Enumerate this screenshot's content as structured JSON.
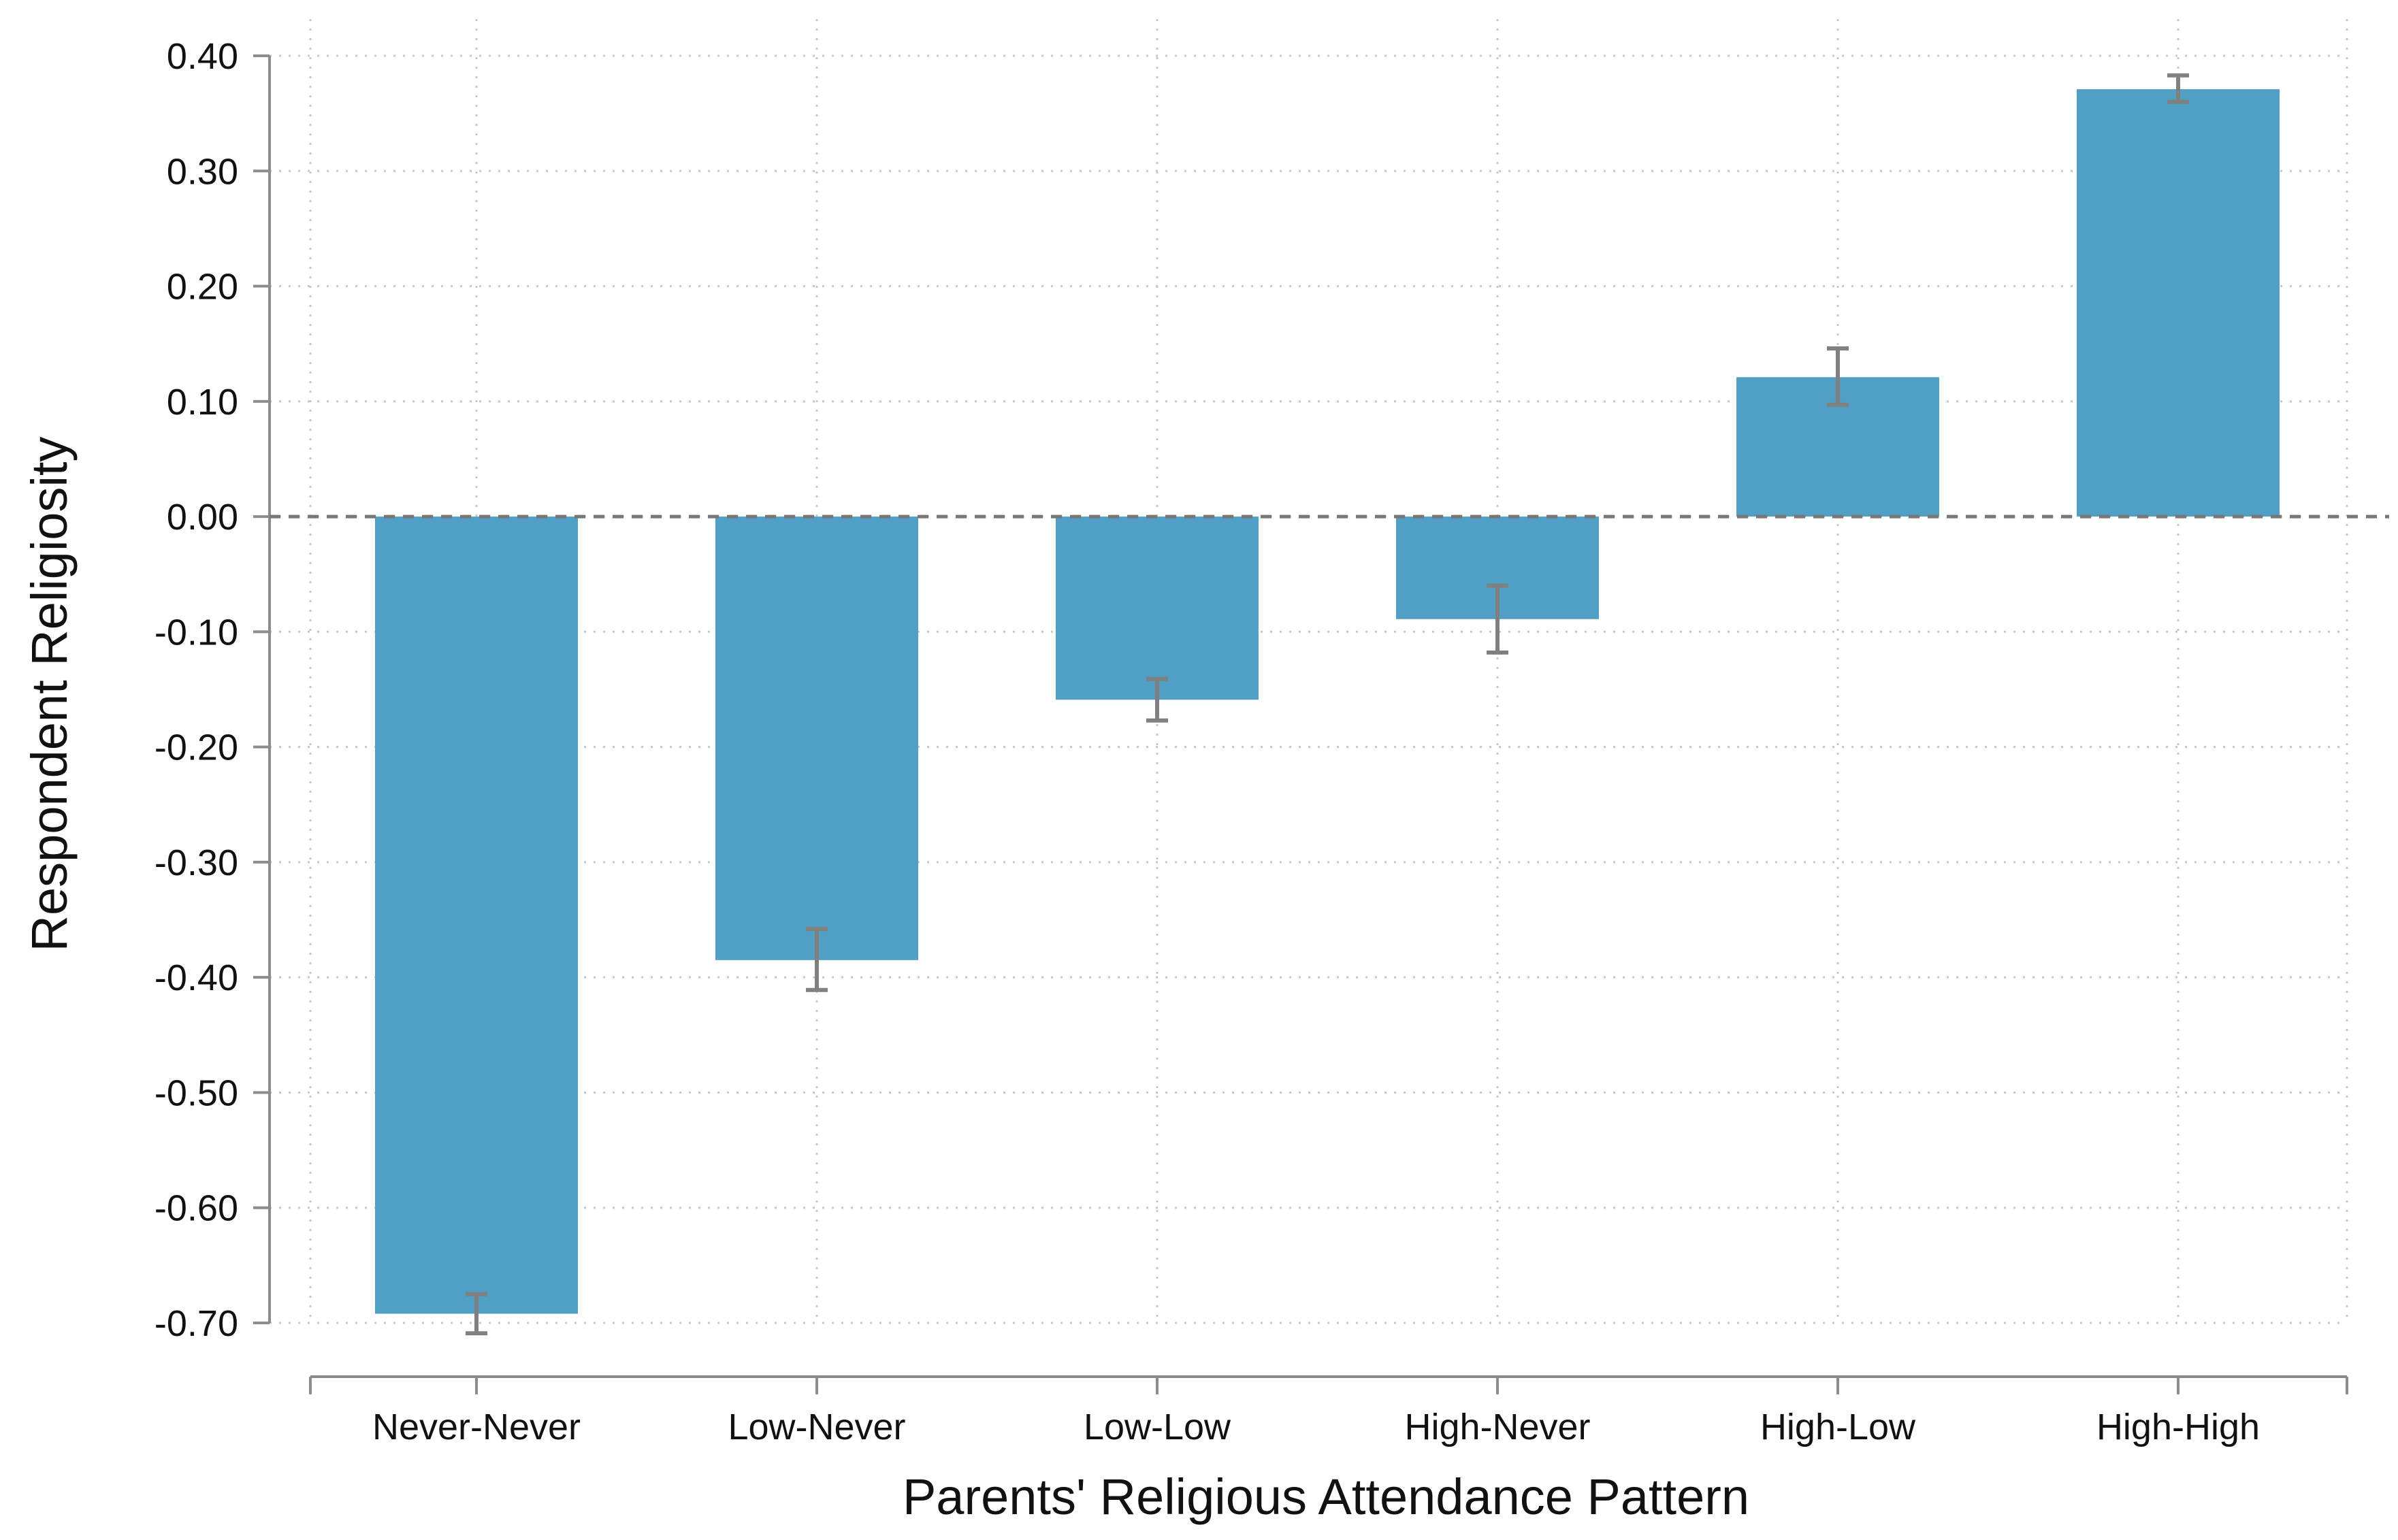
{
  "chart_data": {
    "type": "bar",
    "title": "",
    "xlabel": "Parents' Religious Attendance Pattern",
    "ylabel": "Respondent Religiosity",
    "categories": [
      "Never-Never",
      "Low-Never",
      "Low-Low",
      "High-Never",
      "High-Low",
      "High-High"
    ],
    "values": [
      -0.692,
      -0.385,
      -0.159,
      -0.089,
      0.121,
      0.371
    ],
    "error_bars": [
      {
        "low": -0.709,
        "high": -0.675
      },
      {
        "low": -0.411,
        "high": -0.358
      },
      {
        "low": -0.177,
        "high": -0.141
      },
      {
        "low": -0.118,
        "high": -0.06
      },
      {
        "low": 0.097,
        "high": 0.146
      },
      {
        "low": 0.36,
        "high": 0.383
      }
    ],
    "yticks": [
      0.4,
      0.3,
      0.2,
      0.1,
      0.0,
      -0.1,
      -0.2,
      -0.3,
      -0.4,
      -0.5,
      -0.6,
      -0.7
    ],
    "ytick_labels": [
      "0.40",
      "0.30",
      "0.20",
      "0.10",
      "0.00",
      "-0.10",
      "-0.20",
      "-0.30",
      "-0.40",
      "-0.50",
      "-0.60",
      "-0.70"
    ],
    "ylim": [
      -0.7,
      0.4
    ],
    "grid": true,
    "reference_line": 0,
    "legend": "none",
    "colors": {
      "bar": "#519fc5",
      "error_bar": "#808080",
      "grid": "#c8c8c8",
      "axis": "#8c8c8c",
      "reference_line": "#777777",
      "text": "#111111"
    }
  }
}
